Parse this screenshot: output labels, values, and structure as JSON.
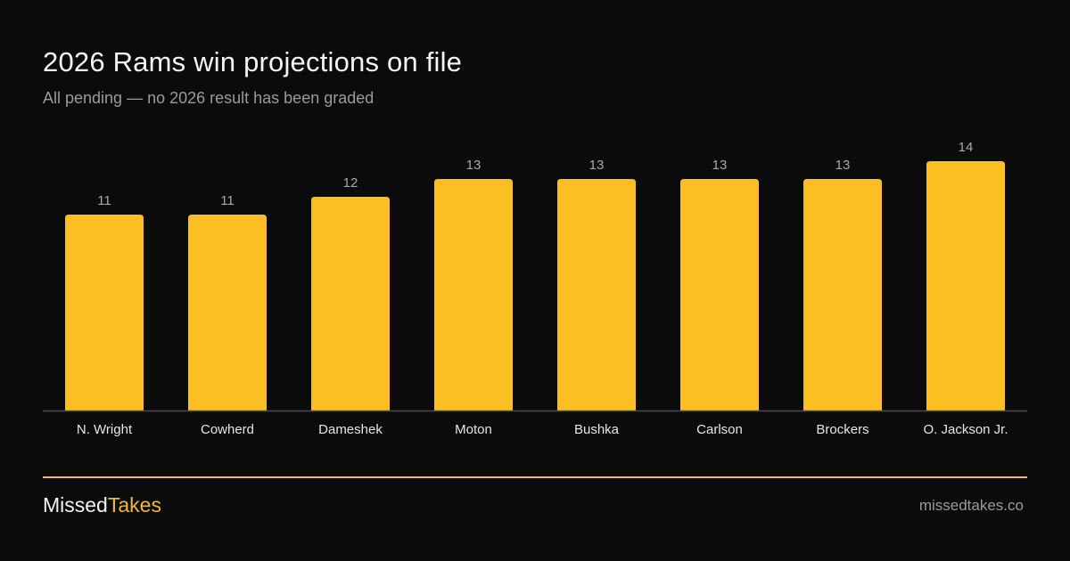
{
  "header": {
    "title": "2026 Rams win projections on file",
    "subtitle": "All pending — no 2026 result has been graded"
  },
  "footer": {
    "brand_part1": "Missed",
    "brand_part2": "Takes",
    "domain": "missedtakes.co"
  },
  "colors": {
    "bar": "#fbbf24",
    "axis": "#4a4a52",
    "value_label": "#a8a8a8",
    "category_label": "#e6e6e6"
  },
  "chart_data": {
    "type": "bar",
    "categories": [
      "N. Wright",
      "Cowherd",
      "Dameshek",
      "Moton",
      "Bushka",
      "Carlson",
      "Brockers",
      "O. Jackson Jr."
    ],
    "values": [
      11,
      11,
      12,
      13,
      13,
      13,
      13,
      14
    ],
    "title": "2026 Rams win projections on file",
    "subtitle": "All pending — no 2026 result has been graded",
    "ylim": [
      0,
      14
    ],
    "grid": false,
    "data_labels": true
  }
}
